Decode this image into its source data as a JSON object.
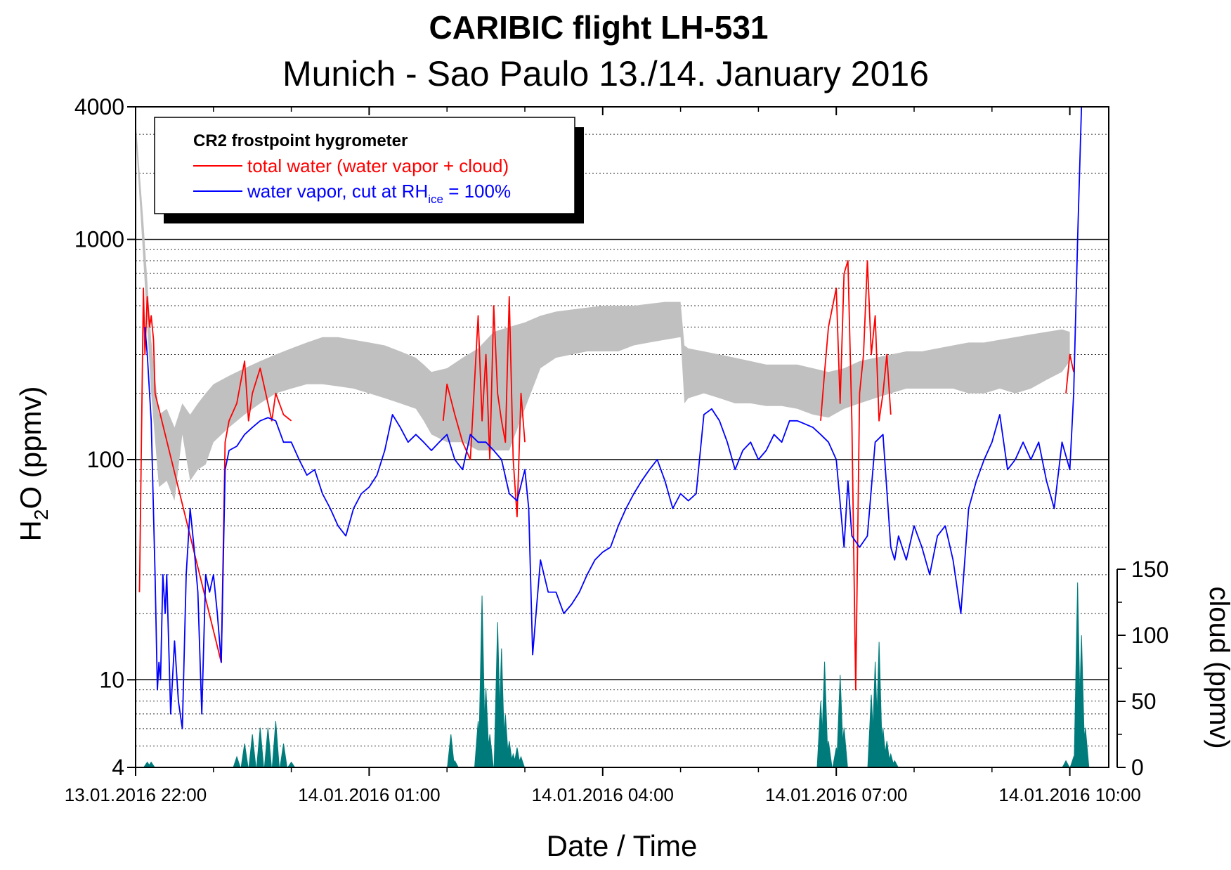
{
  "chart_data": {
    "type": "line",
    "title": "CARIBIC flight LH-531",
    "subtitle": "Munich - Sao Paulo 13./14. January 2016",
    "xlabel": "Date / Time",
    "ylabel": {
      "base": "H",
      "sub": "2",
      "rest": "O (ppmv)"
    },
    "y2label": "cloud (ppmv)",
    "x_unit": "hours since 13.01.2016 22:00",
    "xlim": [
      0,
      12.5
    ],
    "ylim": [
      4,
      4000
    ],
    "yscale": "log",
    "y2lim": [
      0,
      150
    ],
    "x_ticks": [
      {
        "v": 0,
        "label": "13.01.2016 22:00"
      },
      {
        "v": 3,
        "label": "14.01.2016 01:00"
      },
      {
        "v": 6,
        "label": "14.01.2016 04:00"
      },
      {
        "v": 9,
        "label": "14.01.2016 07:00"
      },
      {
        "v": 12,
        "label": "14.01.2016 10:00"
      }
    ],
    "y_ticks": [
      {
        "v": 4,
        "label": "4"
      },
      {
        "v": 10,
        "label": "10"
      },
      {
        "v": 100,
        "label": "100"
      },
      {
        "v": 1000,
        "label": "1000"
      },
      {
        "v": 4000,
        "label": "4000"
      }
    ],
    "y2_ticks": [
      {
        "v": 0,
        "label": "0"
      },
      {
        "v": 50,
        "label": "50"
      },
      {
        "v": 100,
        "label": "100"
      },
      {
        "v": 150,
        "label": "150"
      }
    ],
    "legend": {
      "title": "CR2 frostpoint hygrometer",
      "placement": "top-left",
      "entries": [
        {
          "label": "total water (water vapor + cloud)",
          "color": "#ff0000"
        },
        {
          "label_main": "water vapor, cut at RH",
          "label_sub": "ice",
          "label_tail": " = 100%",
          "color": "#0000ff"
        }
      ]
    },
    "colors": {
      "total_water": "#ff0000",
      "water_vapor": "#0000ff",
      "saturation_band": "#c0c0c0",
      "cloud": "#007b7b"
    },
    "series": [
      {
        "name": "total water (water vapor + cloud)",
        "x": [
          0.05,
          0.1,
          0.12,
          0.15,
          0.18,
          0.2,
          0.23,
          0.25,
          1.1,
          1.15,
          1.2,
          1.3,
          1.4,
          1.45,
          1.5,
          1.6,
          1.7,
          1.75,
          1.8,
          1.9,
          2.0,
          3.95,
          4.0,
          4.1,
          4.2,
          4.3,
          4.4,
          4.45,
          4.5,
          4.55,
          4.6,
          4.65,
          4.7,
          4.75,
          4.8,
          4.85,
          4.9,
          4.95,
          5.0,
          8.8,
          8.85,
          8.9,
          9.0,
          9.05,
          9.1,
          9.15,
          9.2,
          9.25,
          9.3,
          9.35,
          9.4,
          9.45,
          9.5,
          9.55,
          9.6,
          9.65,
          9.7,
          11.95,
          12.0,
          12.05
        ],
        "values": [
          25,
          600,
          300,
          550,
          400,
          450,
          350,
          200,
          12,
          120,
          150,
          180,
          280,
          150,
          200,
          260,
          180,
          150,
          200,
          160,
          150,
          150,
          220,
          160,
          120,
          100,
          450,
          150,
          300,
          100,
          500,
          200,
          150,
          120,
          550,
          100,
          55,
          200,
          120,
          150,
          250,
          400,
          600,
          180,
          700,
          800,
          150,
          9,
          200,
          300,
          800,
          300,
          450,
          150,
          200,
          300,
          160,
          200,
          300,
          250
        ]
      },
      {
        "name": "water vapor, cut at RH_ice = 100%",
        "x": [
          0.12,
          0.15,
          0.2,
          0.25,
          0.28,
          0.3,
          0.32,
          0.35,
          0.38,
          0.4,
          0.45,
          0.5,
          0.55,
          0.6,
          0.65,
          0.7,
          0.75,
          0.8,
          0.85,
          0.9,
          0.95,
          1.0,
          1.05,
          1.1,
          1.15,
          1.2,
          1.3,
          1.4,
          1.5,
          1.6,
          1.7,
          1.8,
          1.9,
          2.0,
          2.1,
          2.2,
          2.3,
          2.4,
          2.5,
          2.6,
          2.7,
          2.8,
          2.9,
          3.0,
          3.1,
          3.2,
          3.3,
          3.4,
          3.5,
          3.6,
          3.7,
          3.8,
          3.9,
          4.0,
          4.1,
          4.2,
          4.3,
          4.4,
          4.5,
          4.6,
          4.7,
          4.8,
          4.9,
          5.0,
          5.05,
          5.1,
          5.2,
          5.3,
          5.4,
          5.5,
          5.6,
          5.7,
          5.8,
          5.9,
          6.0,
          6.1,
          6.2,
          6.3,
          6.4,
          6.5,
          6.6,
          6.7,
          6.8,
          6.9,
          7.0,
          7.1,
          7.2,
          7.3,
          7.4,
          7.5,
          7.6,
          7.7,
          7.8,
          7.9,
          8.0,
          8.1,
          8.2,
          8.3,
          8.4,
          8.5,
          8.6,
          8.7,
          8.8,
          8.9,
          9.0,
          9.1,
          9.15,
          9.2,
          9.3,
          9.4,
          9.5,
          9.6,
          9.7,
          9.75,
          9.8,
          9.9,
          10.0,
          10.1,
          10.2,
          10.3,
          10.4,
          10.5,
          10.6,
          10.7,
          10.8,
          10.9,
          11.0,
          11.1,
          11.2,
          11.3,
          11.4,
          11.5,
          11.6,
          11.7,
          11.8,
          11.9,
          12.0,
          12.05,
          12.1,
          12.15
        ],
        "values": [
          400,
          300,
          150,
          30,
          9,
          12,
          10,
          30,
          20,
          30,
          7,
          15,
          8,
          6,
          30,
          60,
          40,
          25,
          7,
          30,
          25,
          30,
          20,
          12,
          90,
          110,
          115,
          130,
          140,
          150,
          155,
          150,
          120,
          120,
          100,
          85,
          90,
          70,
          60,
          50,
          45,
          60,
          70,
          75,
          85,
          110,
          160,
          140,
          120,
          130,
          120,
          110,
          120,
          130,
          100,
          90,
          130,
          120,
          120,
          110,
          100,
          70,
          65,
          90,
          60,
          13,
          35,
          25,
          25,
          20,
          22,
          25,
          30,
          35,
          38,
          40,
          50,
          60,
          70,
          80,
          90,
          100,
          80,
          60,
          70,
          65,
          70,
          160,
          170,
          150,
          120,
          90,
          110,
          120,
          100,
          110,
          130,
          120,
          150,
          150,
          145,
          140,
          130,
          120,
          100,
          40,
          80,
          45,
          40,
          45,
          120,
          130,
          40,
          35,
          45,
          35,
          50,
          40,
          30,
          45,
          50,
          35,
          20,
          60,
          80,
          100,
          120,
          160,
          90,
          100,
          120,
          100,
          120,
          80,
          60,
          120,
          90,
          200,
          1000,
          4000
        ]
      },
      {
        "name": "saturation band",
        "x": [
          0.0,
          0.1,
          0.2,
          0.3,
          0.4,
          0.5,
          0.6,
          0.7,
          0.8,
          0.9,
          1.0,
          1.2,
          1.4,
          1.6,
          1.8,
          2.0,
          2.2,
          2.4,
          2.6,
          2.8,
          3.0,
          3.2,
          3.4,
          3.6,
          3.7,
          3.8,
          4.0,
          4.2,
          4.4,
          4.6,
          4.8,
          5.0,
          5.2,
          5.4,
          5.6,
          5.8,
          6.0,
          6.2,
          6.4,
          6.6,
          6.8,
          7.0,
          7.05,
          7.1,
          7.3,
          7.5,
          7.7,
          7.9,
          8.1,
          8.3,
          8.5,
          8.7,
          8.9,
          9.1,
          9.3,
          9.5,
          9.7,
          9.9,
          10.1,
          10.3,
          10.5,
          10.7,
          10.9,
          11.1,
          11.3,
          11.5,
          11.7,
          11.9,
          12.0
        ],
        "low": [
          3000,
          800,
          200,
          75,
          80,
          65,
          130,
          80,
          90,
          95,
          120,
          140,
          160,
          180,
          200,
          210,
          220,
          220,
          215,
          210,
          200,
          190,
          180,
          170,
          150,
          130,
          120,
          120,
          110,
          110,
          110,
          170,
          260,
          290,
          300,
          310,
          310,
          310,
          330,
          340,
          350,
          360,
          180,
          190,
          200,
          190,
          180,
          180,
          175,
          175,
          170,
          160,
          155,
          170,
          180,
          190,
          200,
          210,
          210,
          210,
          210,
          200,
          200,
          210,
          200,
          210,
          230,
          250,
          280
        ],
        "high": [
          3500,
          1200,
          350,
          160,
          170,
          140,
          180,
          160,
          180,
          200,
          220,
          240,
          260,
          280,
          300,
          320,
          340,
          360,
          360,
          350,
          340,
          330,
          310,
          290,
          270,
          250,
          260,
          290,
          320,
          380,
          400,
          420,
          450,
          470,
          480,
          490,
          500,
          500,
          500,
          510,
          520,
          520,
          330,
          320,
          310,
          300,
          290,
          280,
          270,
          270,
          270,
          260,
          250,
          260,
          280,
          290,
          300,
          310,
          310,
          320,
          330,
          340,
          340,
          350,
          360,
          370,
          380,
          390,
          380
        ]
      },
      {
        "name": "cloud",
        "axis": "y2",
        "x": [
          0.15,
          0.17,
          0.2,
          1.2,
          1.3,
          1.4,
          1.5,
          1.6,
          1.7,
          1.8,
          1.9,
          2.0,
          4.0,
          4.05,
          4.1,
          4.35,
          4.4,
          4.45,
          4.5,
          4.55,
          4.6,
          4.65,
          4.7,
          4.75,
          4.8,
          4.85,
          4.9,
          4.95,
          5.0,
          8.7,
          8.8,
          8.85,
          8.9,
          9.0,
          9.05,
          9.1,
          9.4,
          9.45,
          9.5,
          9.55,
          9.6,
          9.65,
          9.7,
          9.75,
          11.95,
          12.05,
          12.1,
          12.15,
          12.2
        ],
        "values": [
          4,
          0,
          4,
          0,
          8,
          18,
          25,
          30,
          30,
          35,
          18,
          4,
          0,
          25,
          5,
          0,
          35,
          130,
          60,
          25,
          0,
          110,
          90,
          40,
          20,
          10,
          15,
          8,
          0,
          0,
          50,
          80,
          20,
          15,
          70,
          30,
          0,
          55,
          80,
          95,
          30,
          20,
          10,
          5,
          5,
          8,
          140,
          100,
          30
        ]
      }
    ]
  }
}
